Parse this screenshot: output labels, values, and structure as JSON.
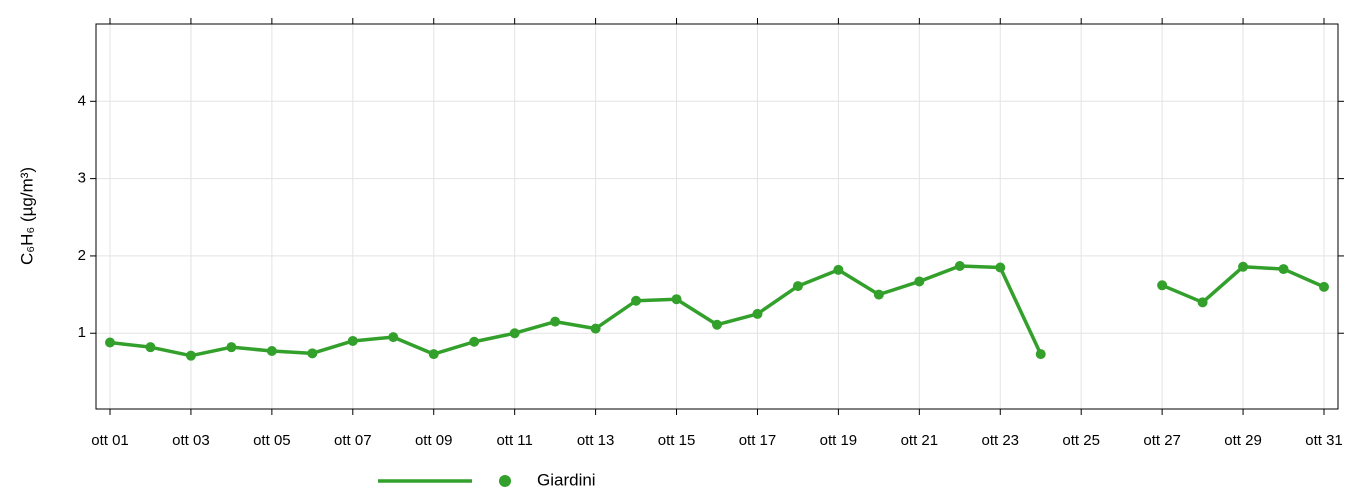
{
  "chart_data": {
    "type": "line",
    "y_label": "C₆H₆ (µg/m³)",
    "categories": [
      "ott 01",
      null,
      "ott 03",
      null,
      "ott 05",
      null,
      "ott 07",
      null,
      "ott 09",
      null,
      "ott 11",
      null,
      "ott 13",
      null,
      "ott 15",
      null,
      "ott 17",
      null,
      "ott 19",
      null,
      "ott 21",
      null,
      "ott 23",
      null,
      "ott 25",
      null,
      "ott 27",
      null,
      "ott 29",
      null,
      "ott 31"
    ],
    "series": [
      {
        "name": "Giardini",
        "color": "#33a02c",
        "values": [
          0.88,
          0.82,
          0.71,
          0.82,
          0.77,
          0.74,
          0.9,
          0.95,
          0.73,
          0.89,
          1.0,
          1.15,
          1.06,
          1.42,
          1.44,
          1.11,
          1.25,
          1.61,
          1.82,
          1.5,
          1.67,
          1.87,
          1.85,
          0.73,
          null,
          null,
          1.62,
          1.4,
          1.86,
          1.83,
          1.6
        ]
      }
    ],
    "ylim": [
      0.02,
      5.0
    ],
    "yticks": [
      1,
      2,
      3,
      4
    ],
    "grid": true,
    "legend": "bottom"
  }
}
